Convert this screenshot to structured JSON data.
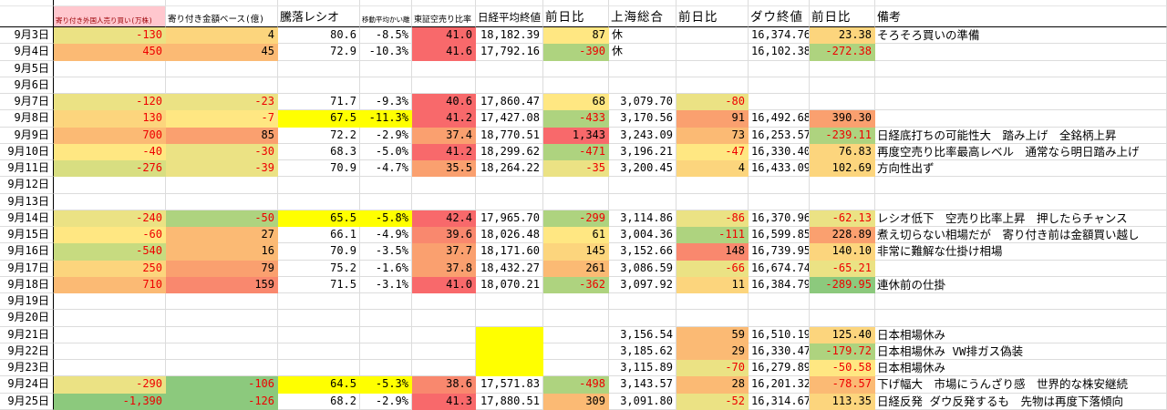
{
  "table": {
    "palette": {
      "Y0": "#FFFF00",
      "Y1": "#FFE782",
      "Y2": "#EBE284",
      "K1": "#D8DE81",
      "K2": "#C7DB80",
      "G1": "#AED37F",
      "G2": "#8CC97D",
      "O1": "#FCD57D",
      "O2": "#FBBA74",
      "O3": "#FAA06F",
      "R1": "#F9886E",
      "R2": "#F8696B",
      "PK": "#FFC7CE",
      "DR": "#9C0006",
      "NEG": "#EE0000",
      "GRID": "#DCDCDC",
      "BORDER": "#000000"
    },
    "headers": [
      {
        "id": "date",
        "label": ""
      },
      {
        "id": "foreign-open-trade",
        "label": "寄り付き外国人売り買い(万株)"
      },
      {
        "id": "open-amount-base",
        "label": "寄り付き金額ベース(億)"
      },
      {
        "id": "updown-ratio",
        "label": "騰落レシオ"
      },
      {
        "id": "ma-deviation",
        "label": "移動平均かい離"
      },
      {
        "id": "tse-short-ratio",
        "label": "東証空売り比率"
      },
      {
        "id": "nikkei-close",
        "label": "日経平均終値"
      },
      {
        "id": "nikkei-change",
        "label": "前日比"
      },
      {
        "id": "shanghai-composite",
        "label": "上海総合"
      },
      {
        "id": "shanghai-change",
        "label": "前日比"
      },
      {
        "id": "dow-close",
        "label": "ダウ終値"
      },
      {
        "id": "dow-change",
        "label": "前日比"
      },
      {
        "id": "notes",
        "label": "備考"
      }
    ],
    "rows": [
      {
        "date": "9月3日",
        "cells": [
          {
            "v": "-130",
            "bg": "Y2",
            "red": true
          },
          {
            "v": "4",
            "bg": "O1"
          },
          {
            "v": "80.6"
          },
          {
            "v": "-8.5%"
          },
          {
            "v": "41.0",
            "bg": "R2"
          },
          {
            "v": "18,182.39"
          },
          {
            "v": "87",
            "bg": "Y1"
          },
          {
            "v": "休",
            "align": "left"
          },
          null,
          {
            "v": "16,374.76"
          },
          {
            "v": "23.38",
            "bg": "O1"
          },
          {
            "v": "そろそろ買いの準備",
            "align": "left"
          }
        ]
      },
      {
        "date": "9月4日",
        "cells": [
          {
            "v": "450",
            "bg": "O2",
            "red": true
          },
          {
            "v": "45",
            "bg": "O2"
          },
          {
            "v": "72.9"
          },
          {
            "v": "-10.3%"
          },
          {
            "v": "41.6",
            "bg": "R2"
          },
          {
            "v": "17,792.16"
          },
          {
            "v": "-390",
            "bg": "G1",
            "red": true
          },
          {
            "v": "休",
            "align": "left"
          },
          null,
          {
            "v": "16,102.38"
          },
          {
            "v": "-272.38",
            "bg": "G1",
            "red": true
          },
          null
        ]
      },
      {
        "date": "9月5日",
        "cells": [
          null,
          null,
          null,
          null,
          null,
          null,
          null,
          null,
          null,
          null,
          null,
          null
        ]
      },
      {
        "date": "9月6日",
        "cells": [
          null,
          null,
          null,
          null,
          null,
          null,
          null,
          null,
          null,
          null,
          null,
          null
        ]
      },
      {
        "date": "9月7日",
        "cells": [
          {
            "v": "-120",
            "bg": "Y2",
            "red": true
          },
          {
            "v": "-23",
            "bg": "Y2",
            "red": true
          },
          {
            "v": "71.7"
          },
          {
            "v": "-9.3%"
          },
          {
            "v": "40.6",
            "bg": "R2"
          },
          {
            "v": "17,860.47"
          },
          {
            "v": "68",
            "bg": "Y1"
          },
          {
            "v": "3,079.70"
          },
          {
            "v": "-80",
            "bg": "Y2",
            "red": true
          },
          null,
          null,
          null
        ]
      },
      {
        "date": "9月8日",
        "cells": [
          {
            "v": "130",
            "bg": "O1",
            "red": true
          },
          {
            "v": "-7",
            "bg": "Y1",
            "red": true
          },
          {
            "v": "67.5",
            "bg": "Y0"
          },
          {
            "v": "-11.3%",
            "bg": "Y0"
          },
          {
            "v": "41.2",
            "bg": "R2"
          },
          {
            "v": "17,427.08"
          },
          {
            "v": "-433",
            "bg": "G1",
            "red": true
          },
          {
            "v": "3,170.56"
          },
          {
            "v": "91",
            "bg": "O3"
          },
          {
            "v": "16,492.68"
          },
          {
            "v": "390.30",
            "bg": "O3"
          },
          null
        ]
      },
      {
        "date": "9月9日",
        "cells": [
          {
            "v": "700",
            "bg": "O2",
            "red": true
          },
          {
            "v": "85",
            "bg": "O3"
          },
          {
            "v": "72.2"
          },
          {
            "v": "-2.9%"
          },
          {
            "v": "37.4",
            "bg": "O3"
          },
          {
            "v": "18,770.51"
          },
          {
            "v": "1,343",
            "bg": "R2"
          },
          {
            "v": "3,243.09"
          },
          {
            "v": "73",
            "bg": "O2"
          },
          {
            "v": "16,253.57"
          },
          {
            "v": "-239.11",
            "bg": "G1",
            "red": true
          },
          {
            "v": "日経底打ちの可能性大　踏み上げ　全銘柄上昇",
            "align": "left"
          }
        ]
      },
      {
        "date": "9月10日",
        "cells": [
          {
            "v": "-40",
            "bg": "Y1",
            "red": true
          },
          {
            "v": "-30",
            "bg": "Y2",
            "red": true
          },
          {
            "v": "68.3"
          },
          {
            "v": "-5.0%"
          },
          {
            "v": "41.2",
            "bg": "R2"
          },
          {
            "v": "18,299.62"
          },
          {
            "v": "-471",
            "bg": "G1",
            "red": true
          },
          {
            "v": "3,196.21"
          },
          {
            "v": "-47",
            "bg": "Y1",
            "red": true
          },
          {
            "v": "16,330.40"
          },
          {
            "v": "76.83",
            "bg": "O1"
          },
          {
            "v": "再度空売り比率最高レベル　通常なら明日踏み上げ",
            "align": "left"
          }
        ]
      },
      {
        "date": "9月11日",
        "cells": [
          {
            "v": "-276",
            "bg": "K1",
            "red": true
          },
          {
            "v": "-39",
            "bg": "Y2",
            "red": true
          },
          {
            "v": "70.9"
          },
          {
            "v": "-4.7%"
          },
          {
            "v": "35.5",
            "bg": "O3"
          },
          {
            "v": "18,264.22"
          },
          {
            "v": "-35",
            "bg": "Y2",
            "red": true
          },
          {
            "v": "3,200.45"
          },
          {
            "v": "4",
            "bg": "O1"
          },
          {
            "v": "16,433.09"
          },
          {
            "v": "102.69",
            "bg": "O1"
          },
          {
            "v": "方向性出ず",
            "align": "left"
          }
        ]
      },
      {
        "date": "9月12日",
        "cells": [
          null,
          null,
          null,
          null,
          null,
          null,
          null,
          null,
          null,
          null,
          null,
          null
        ]
      },
      {
        "date": "9月13日",
        "cells": [
          null,
          null,
          null,
          null,
          null,
          null,
          null,
          null,
          null,
          null,
          null,
          null
        ]
      },
      {
        "date": "9月14日",
        "cells": [
          {
            "v": "-240",
            "bg": "Y2",
            "red": true
          },
          {
            "v": "-50",
            "bg": "G1",
            "red": true
          },
          {
            "v": "65.5",
            "bg": "Y0"
          },
          {
            "v": "-5.8%",
            "bg": "Y0"
          },
          {
            "v": "42.4",
            "bg": "R2"
          },
          {
            "v": "17,965.70"
          },
          {
            "v": "-299",
            "bg": "G1",
            "red": true
          },
          {
            "v": "3,114.86"
          },
          {
            "v": "-86",
            "bg": "Y2",
            "red": true
          },
          {
            "v": "16,370.96"
          },
          {
            "v": "-62.13",
            "bg": "Y2",
            "red": true
          },
          {
            "v": "レシオ低下　空売り比率上昇　押したらチャンス",
            "align": "left"
          }
        ]
      },
      {
        "date": "9月15日",
        "cells": [
          {
            "v": "-60",
            "bg": "Y1",
            "red": true
          },
          {
            "v": "27",
            "bg": "O2"
          },
          {
            "v": "66.1"
          },
          {
            "v": "-4.9%"
          },
          {
            "v": "39.6",
            "bg": "R1"
          },
          {
            "v": "18,026.48"
          },
          {
            "v": "61",
            "bg": "Y1"
          },
          {
            "v": "3,004.36"
          },
          {
            "v": "-111",
            "bg": "G1",
            "red": true
          },
          {
            "v": "16,599.85"
          },
          {
            "v": "228.89",
            "bg": "O3"
          },
          {
            "v": "煮え切らない相場だが　寄り付き前は金額買い越し",
            "align": "left"
          }
        ]
      },
      {
        "date": "9月16日",
        "cells": [
          {
            "v": "-540",
            "bg": "K2",
            "red": true
          },
          {
            "v": "16",
            "bg": "O2"
          },
          {
            "v": "70.9"
          },
          {
            "v": "-3.5%"
          },
          {
            "v": "37.7",
            "bg": "O3"
          },
          {
            "v": "18,171.60"
          },
          {
            "v": "145",
            "bg": "O1"
          },
          {
            "v": "3,152.66"
          },
          {
            "v": "148",
            "bg": "R1"
          },
          {
            "v": "16,739.95"
          },
          {
            "v": "140.10",
            "bg": "O1"
          },
          {
            "v": "非常に難解な仕掛け相場",
            "align": "left"
          }
        ]
      },
      {
        "date": "9月17日",
        "cells": [
          {
            "v": "250",
            "bg": "O1",
            "red": true
          },
          {
            "v": "79",
            "bg": "O3"
          },
          {
            "v": "75.2"
          },
          {
            "v": "-1.6%"
          },
          {
            "v": "37.8",
            "bg": "O3"
          },
          {
            "v": "18,432.27"
          },
          {
            "v": "261",
            "bg": "O2"
          },
          {
            "v": "3,086.59"
          },
          {
            "v": "-66",
            "bg": "Y2",
            "red": true
          },
          {
            "v": "16,674.74"
          },
          {
            "v": "-65.21",
            "bg": "Y2",
            "red": true
          },
          null
        ]
      },
      {
        "date": "9月18日",
        "cells": [
          {
            "v": "710",
            "bg": "O2",
            "red": true
          },
          {
            "v": "159",
            "bg": "R1"
          },
          {
            "v": "71.5"
          },
          {
            "v": "-3.1%"
          },
          {
            "v": "41.0",
            "bg": "R2"
          },
          {
            "v": "18,070.21"
          },
          {
            "v": "-362",
            "bg": "G1",
            "red": true
          },
          {
            "v": "3,097.92"
          },
          {
            "v": "11",
            "bg": "O1"
          },
          {
            "v": "16,384.79"
          },
          {
            "v": "-289.95",
            "bg": "G2",
            "red": true
          },
          {
            "v": "連休前の仕掛",
            "align": "left"
          }
        ]
      },
      {
        "date": "9月19日",
        "cells": [
          null,
          null,
          null,
          null,
          null,
          null,
          null,
          null,
          null,
          null,
          null,
          null
        ]
      },
      {
        "date": "9月20日",
        "cells": [
          null,
          null,
          null,
          null,
          null,
          null,
          null,
          null,
          null,
          null,
          null,
          null
        ]
      },
      {
        "date": "9月21日",
        "cells": [
          null,
          null,
          null,
          null,
          null,
          {
            "v": "",
            "bg": "Y0"
          },
          null,
          {
            "v": "3,156.54"
          },
          {
            "v": "59",
            "bg": "O2"
          },
          {
            "v": "16,510.19"
          },
          {
            "v": "125.40",
            "bg": "O1"
          },
          {
            "v": "日本相場休み",
            "align": "left"
          }
        ]
      },
      {
        "date": "9月22日",
        "cells": [
          null,
          null,
          null,
          null,
          null,
          {
            "v": "",
            "bg": "Y0"
          },
          null,
          {
            "v": "3,185.62"
          },
          {
            "v": "29",
            "bg": "O2"
          },
          {
            "v": "16,330.47"
          },
          {
            "v": "-179.72",
            "bg": "G1",
            "red": true
          },
          {
            "v": "日本相場休み VW排ガス偽装",
            "align": "left"
          }
        ]
      },
      {
        "date": "9月23日",
        "cells": [
          null,
          null,
          null,
          null,
          null,
          {
            "v": "",
            "bg": "Y0"
          },
          null,
          {
            "v": "3,115.89"
          },
          {
            "v": "-70",
            "bg": "Y2",
            "red": true
          },
          {
            "v": "16,279.89"
          },
          {
            "v": "-50.58",
            "bg": "Y1",
            "red": true
          },
          {
            "v": "日本相場休み",
            "align": "left"
          }
        ]
      },
      {
        "date": "9月24日",
        "cells": [
          {
            "v": "-290",
            "bg": "Y2",
            "red": true
          },
          {
            "v": "-106",
            "bg": "G2",
            "red": true
          },
          {
            "v": "64.5",
            "bg": "Y0"
          },
          {
            "v": "-5.3%",
            "bg": "Y0"
          },
          {
            "v": "38.6",
            "bg": "R1"
          },
          {
            "v": "17,571.83"
          },
          {
            "v": "-498",
            "bg": "G1",
            "red": true
          },
          {
            "v": "3,143.57"
          },
          {
            "v": "28",
            "bg": "O2"
          },
          {
            "v": "16,201.32"
          },
          {
            "v": "-78.57",
            "bg": "O2",
            "red": true
          },
          {
            "v": "下げ幅大　市場にうんざり感　世界的な株安継続",
            "align": "left"
          }
        ]
      },
      {
        "date": "9月25日",
        "cells": [
          {
            "v": "-1,390",
            "bg": "G2",
            "red": true
          },
          {
            "v": "-126",
            "bg": "G2",
            "red": true
          },
          {
            "v": "68.2"
          },
          {
            "v": "-2.9%"
          },
          {
            "v": "41.3",
            "bg": "R2"
          },
          {
            "v": "17,880.51"
          },
          {
            "v": "309",
            "bg": "O2"
          },
          {
            "v": "3,091.80"
          },
          {
            "v": "-52",
            "bg": "Y2",
            "red": true
          },
          {
            "v": "16,314.67"
          },
          {
            "v": "113.35",
            "bg": "O1"
          },
          {
            "v": "日経反発 ダウ反発するも　先物は再度下落傾向",
            "align": "left"
          }
        ]
      }
    ]
  }
}
